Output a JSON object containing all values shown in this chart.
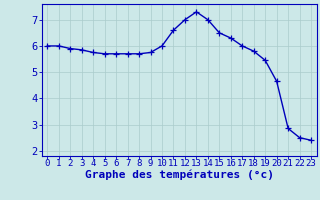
{
  "x": [
    0,
    1,
    2,
    3,
    4,
    5,
    6,
    7,
    8,
    9,
    10,
    11,
    12,
    13,
    14,
    15,
    16,
    17,
    18,
    19,
    20,
    21,
    22,
    23
  ],
  "y": [
    6.0,
    6.0,
    5.9,
    5.85,
    5.75,
    5.7,
    5.7,
    5.7,
    5.7,
    5.75,
    6.0,
    6.6,
    7.0,
    7.3,
    7.0,
    6.5,
    6.3,
    6.0,
    5.8,
    5.45,
    4.65,
    2.85,
    2.5,
    2.4
  ],
  "line_color": "#0000bb",
  "marker": "+",
  "markersize": 4,
  "linewidth": 1.0,
  "bg_color": "#cce8e8",
  "grid_color": "#aacccc",
  "xlabel": "Graphe des températures (°c)",
  "xlabel_color": "#0000bb",
  "xlabel_fontsize": 8,
  "ylabel_ticks": [
    2,
    3,
    4,
    5,
    6,
    7
  ],
  "xtick_labels": [
    "0",
    "1",
    "2",
    "3",
    "4",
    "5",
    "6",
    "7",
    "8",
    "9",
    "10",
    "11",
    "12",
    "13",
    "14",
    "15",
    "16",
    "17",
    "18",
    "19",
    "20",
    "21",
    "22",
    "23"
  ],
  "ylim": [
    1.8,
    7.6
  ],
  "xlim": [
    -0.5,
    23.5
  ],
  "tick_color": "#0000bb",
  "tick_fontsize": 6.5,
  "ytick_fontsize": 7.5,
  "axis_color": "#0000bb"
}
